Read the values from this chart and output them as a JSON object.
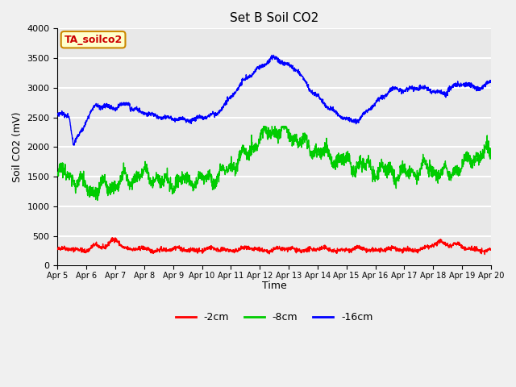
{
  "title": "Set B Soil CO2",
  "ylabel": "Soil CO2 (mV)",
  "xlabel": "Time",
  "annotation": "TA_soilco2",
  "annotation_color": "#cc0000",
  "annotation_bg": "#ffffcc",
  "annotation_border": "#cc8800",
  "ylim": [
    0,
    4000
  ],
  "yticks": [
    0,
    500,
    1000,
    1500,
    2000,
    2500,
    3000,
    3500,
    4000
  ],
  "xtick_labels": [
    "Apr 5",
    "Apr 6",
    "Apr 7",
    "Apr 8",
    "Apr 9",
    "Apr 10",
    "Apr 11",
    "Apr 12",
    "Apr 13",
    "Apr 14",
    "Apr 15",
    "Apr 16",
    "Apr 17",
    "Apr 18",
    "Apr 19",
    "Apr 20"
  ],
  "legend_labels": [
    "-2cm",
    "-8cm",
    "-16cm"
  ],
  "legend_colors": [
    "#ff0000",
    "#00cc00",
    "#0000ff"
  ],
  "bg_color": "#e8e8e8",
  "grid_color": "#ffffff",
  "line_width": 1.0,
  "num_points": 2000
}
